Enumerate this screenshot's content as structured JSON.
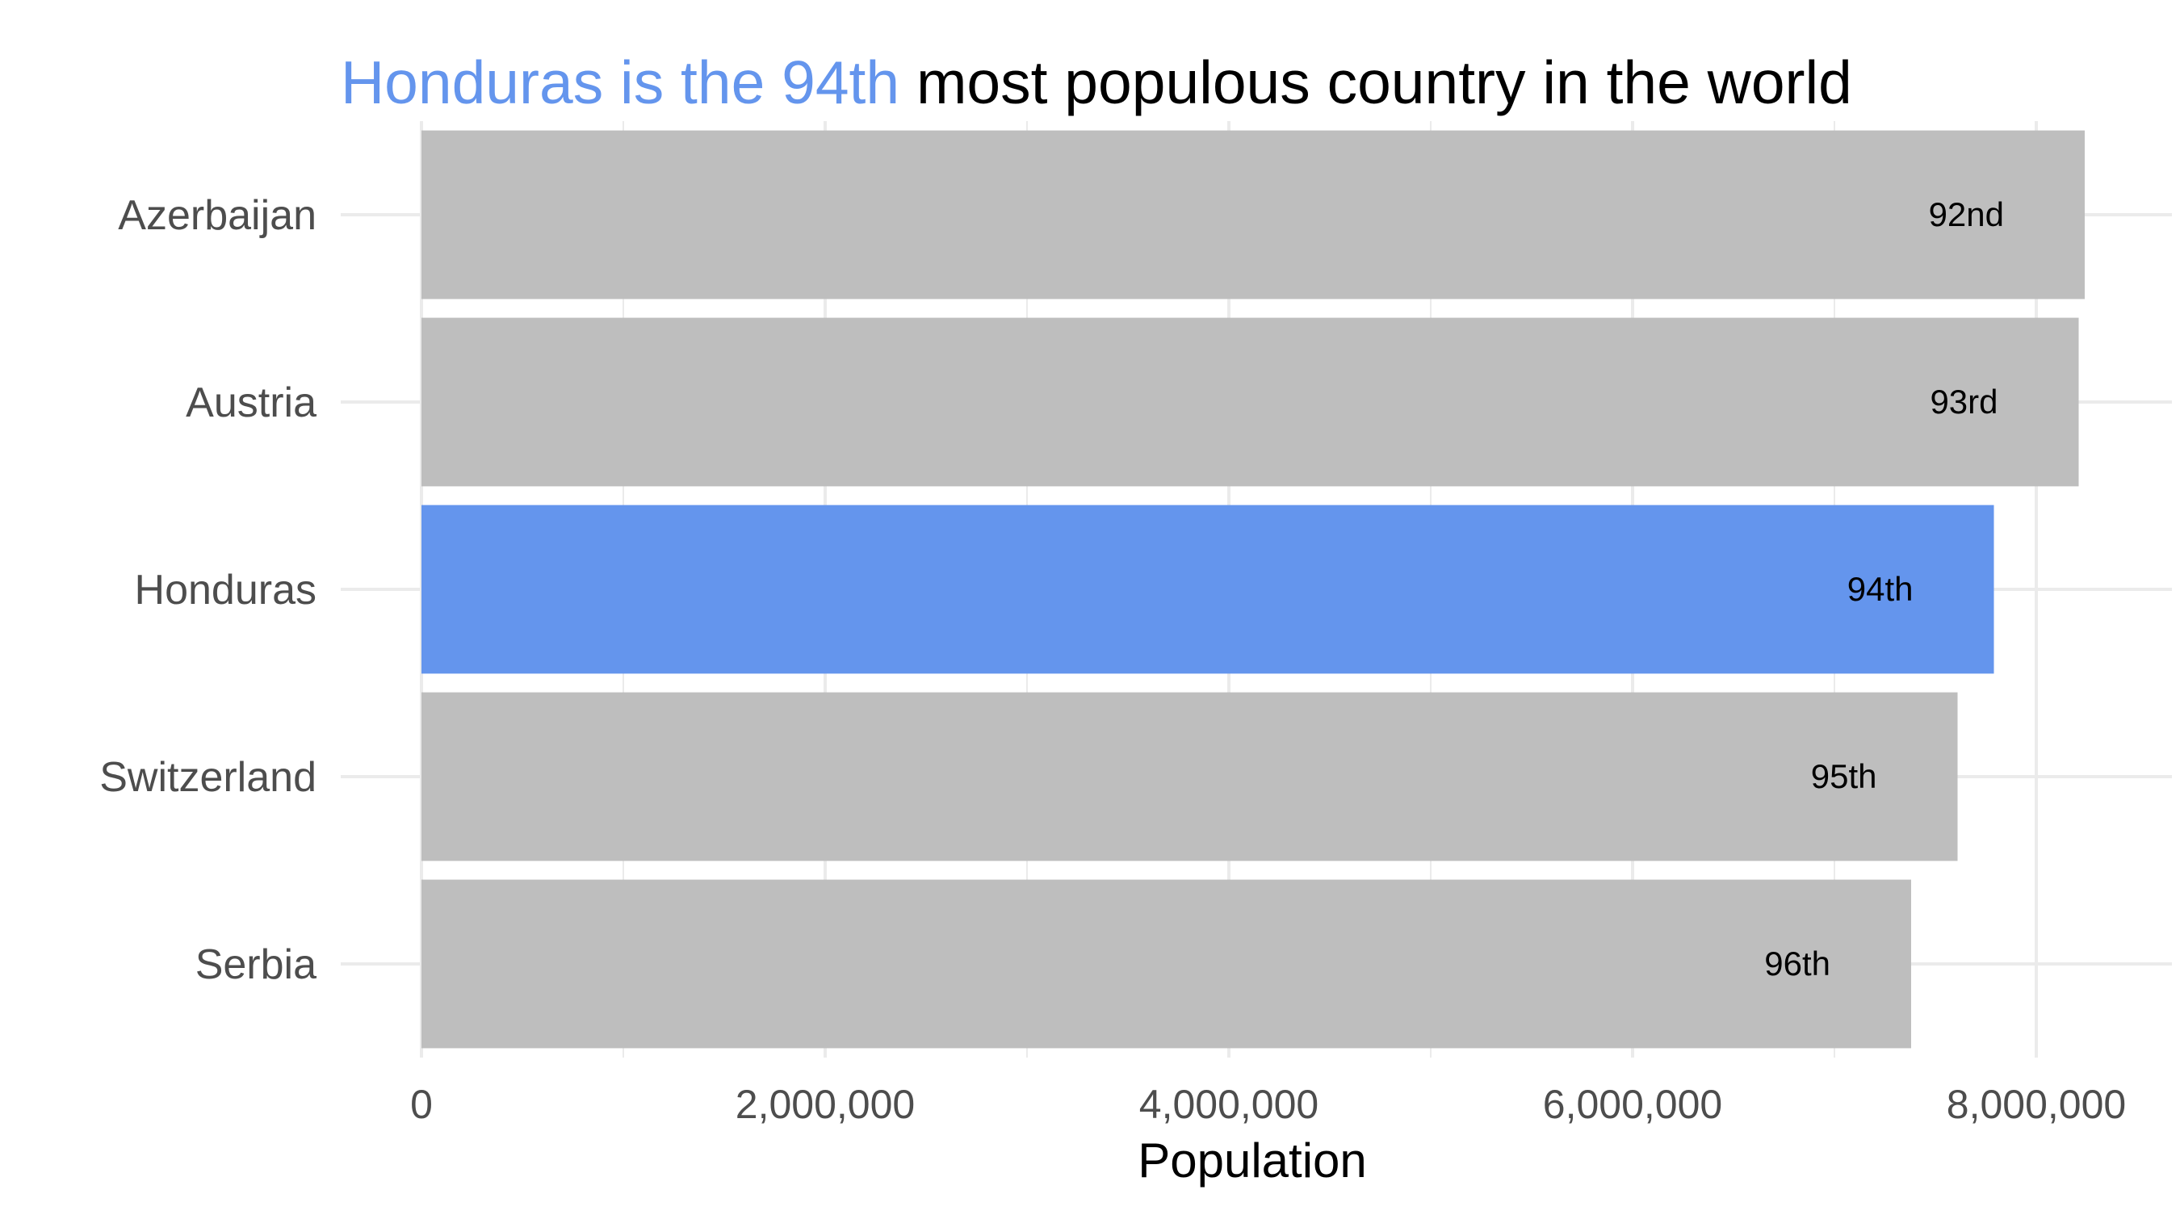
{
  "chart_data": {
    "type": "bar",
    "orientation": "horizontal",
    "title": {
      "highlight": "Honduras is the 94th",
      "rest": " most populous country in the world"
    },
    "xlabel": "Population",
    "ylabel": "",
    "xlim": [
      0,
      8600000
    ],
    "x_ticks": [
      0,
      2000000,
      4000000,
      6000000,
      8000000
    ],
    "x_tick_labels": [
      "0",
      "2,000,000",
      "4,000,000",
      "6,000,000",
      "8,000,000"
    ],
    "categories": [
      "Azerbaijan",
      "Austria",
      "Honduras",
      "Switzerland",
      "Serbia"
    ],
    "values": [
      8240000,
      8210000,
      7790000,
      7610000,
      7380000
    ],
    "rank_labels": [
      "92nd",
      "93rd",
      "94th",
      "95th",
      "96th"
    ],
    "highlight_category": "Honduras",
    "grid": true,
    "legend": "none",
    "colors": {
      "highlight": "#6495ED",
      "default": "#BEBEBE",
      "grid": "#EBEBEB",
      "axis_text": "#4D4D4D",
      "text": "#000000"
    }
  }
}
